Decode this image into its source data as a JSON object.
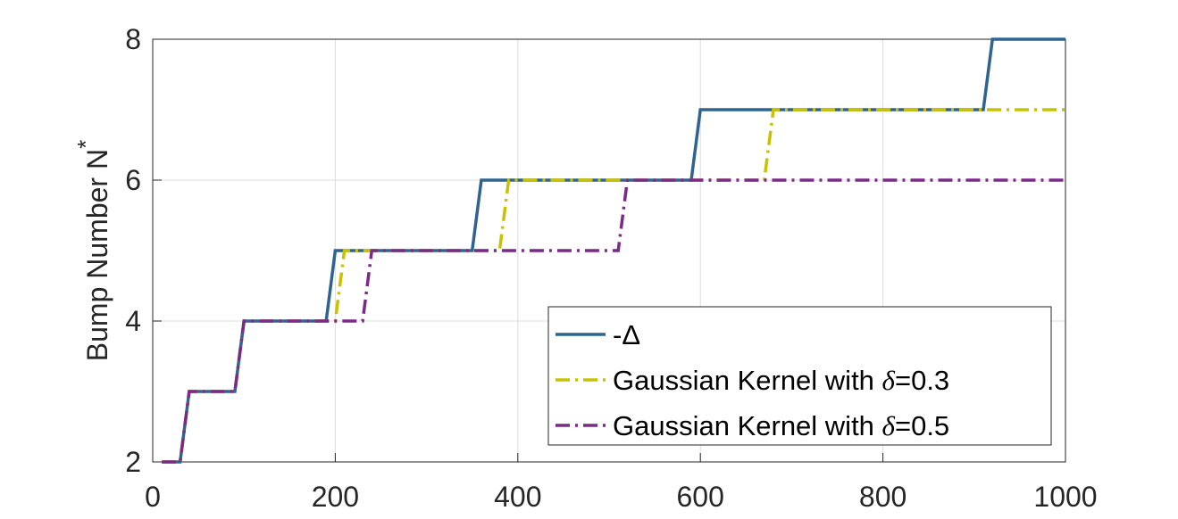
{
  "chart_data": {
    "type": "line",
    "title": "",
    "xlabel": "",
    "ylabel": "Bump Number N",
    "ylabel_superscript": "*",
    "xlim": [
      0,
      1000
    ],
    "ylim": [
      2,
      8
    ],
    "xticks": [
      0,
      200,
      400,
      600,
      800,
      1000
    ],
    "yticks": [
      2,
      4,
      6,
      8
    ],
    "xtick_labels": [
      "0",
      "200",
      "400",
      "600",
      "800",
      "1000"
    ],
    "ytick_labels": [
      "2",
      "4",
      "6",
      "8"
    ],
    "grid": true,
    "legend_position": "bottom-right",
    "series": [
      {
        "name": "-Δ",
        "name_prefix": "-",
        "name_symbol": "Δ",
        "name_suffix": "",
        "color": "#2f6491",
        "style": "solid",
        "points": [
          [
            10,
            2
          ],
          [
            30,
            2
          ],
          [
            40,
            3
          ],
          [
            90,
            3
          ],
          [
            100,
            4
          ],
          [
            190,
            4
          ],
          [
            200,
            5
          ],
          [
            350,
            5
          ],
          [
            360,
            6
          ],
          [
            590,
            6
          ],
          [
            600,
            7
          ],
          [
            910,
            7
          ],
          [
            920,
            8
          ],
          [
            1000,
            8
          ]
        ]
      },
      {
        "name": "Gaussian Kernel with δ=0.3",
        "name_prefix": "Gaussian Kernel with ",
        "name_symbol": "δ",
        "name_suffix": "=0.3",
        "color": "#c8c200",
        "style": "dashdot",
        "points": [
          [
            10,
            2
          ],
          [
            30,
            2
          ],
          [
            40,
            3
          ],
          [
            90,
            3
          ],
          [
            100,
            4
          ],
          [
            200,
            4
          ],
          [
            210,
            5
          ],
          [
            380,
            5
          ],
          [
            390,
            6
          ],
          [
            670,
            6
          ],
          [
            680,
            7
          ],
          [
            1000,
            7
          ]
        ]
      },
      {
        "name": "Gaussian Kernel with δ=0.5",
        "name_prefix": "Gaussian Kernel with ",
        "name_symbol": "δ",
        "name_suffix": "=0.5",
        "color": "#7b2a8a",
        "style": "dashdot",
        "points": [
          [
            10,
            2
          ],
          [
            30,
            2
          ],
          [
            40,
            3
          ],
          [
            90,
            3
          ],
          [
            100,
            4
          ],
          [
            230,
            4
          ],
          [
            240,
            5
          ],
          [
            510,
            5
          ],
          [
            520,
            6
          ],
          [
            1000,
            6
          ]
        ]
      }
    ]
  }
}
